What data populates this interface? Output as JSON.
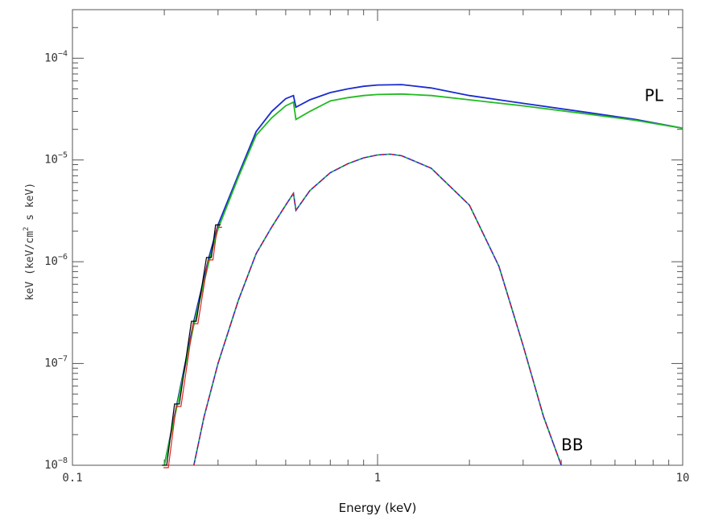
{
  "chart_data": {
    "type": "line",
    "xlabel": "Energy (keV)",
    "ylabel": {
      "prefix": "keV (keV/cm",
      "sup": "2",
      "suffix": " s keV)"
    },
    "xscale": "log",
    "yscale": "log",
    "xlim": [
      0.1,
      10
    ],
    "ylim": [
      1e-08,
      0.0003
    ],
    "x_ticks": [
      {
        "value": 0.1,
        "label": "0.1"
      },
      {
        "value": 1,
        "label": "1"
      },
      {
        "value": 10,
        "label": "10"
      }
    ],
    "y_ticks": [
      {
        "value": 1e-08,
        "base": "10",
        "exp": "−8"
      },
      {
        "value": 1e-07,
        "base": "10",
        "exp": "−7"
      },
      {
        "value": 1e-06,
        "base": "10",
        "exp": "−6"
      },
      {
        "value": 1e-05,
        "base": "10",
        "exp": "−5"
      },
      {
        "value": 0.0001,
        "base": "10",
        "exp": "−4"
      }
    ],
    "grid": false,
    "colors": {
      "data_black": "#000000",
      "data_red": "#dd2222",
      "data_green": "#22bb22",
      "data_blue": "#1a2bd0"
    },
    "annotations": [
      {
        "text": "PL",
        "x": 7.5,
        "y": 3.8e-05
      },
      {
        "text": "BB",
        "x": 4.0,
        "y": 1.4e-08
      }
    ],
    "series": [
      {
        "color": "blue",
        "style": "solid",
        "x": [
          0.2,
          0.22,
          0.25,
          0.28,
          0.3,
          0.35,
          0.4,
          0.45,
          0.5,
          0.53,
          0.54,
          0.6,
          0.7,
          0.8,
          0.9,
          1.0,
          1.2,
          1.5,
          2.0,
          3.0,
          5.0,
          7.0,
          10.0
        ],
        "y": [
          1e-08,
          4e-08,
          2.6e-07,
          1.1e-06,
          2.3e-06,
          7.2e-06,
          1.9e-05,
          3e-05,
          4e-05,
          4.3e-05,
          3.3e-05,
          3.9e-05,
          4.6e-05,
          5e-05,
          5.3e-05,
          5.45e-05,
          5.5e-05,
          5.1e-05,
          4.3e-05,
          3.6e-05,
          2.9e-05,
          2.5e-05,
          2.05e-05
        ]
      },
      {
        "color": "green",
        "style": "solid",
        "x": [
          0.2,
          0.22,
          0.25,
          0.28,
          0.3,
          0.35,
          0.4,
          0.45,
          0.5,
          0.53,
          0.54,
          0.6,
          0.7,
          0.8,
          0.9,
          1.0,
          1.2,
          1.5,
          2.0,
          3.0,
          5.0,
          7.0,
          10.0
        ],
        "y": [
          1e-08,
          3.8e-08,
          2.4e-07,
          1e-06,
          2.1e-06,
          6.8e-06,
          1.75e-05,
          2.6e-05,
          3.4e-05,
          3.7e-05,
          2.5e-05,
          3e-05,
          3.8e-05,
          4.1e-05,
          4.3e-05,
          4.4e-05,
          4.45e-05,
          4.3e-05,
          3.9e-05,
          3.4e-05,
          2.8e-05,
          2.45e-05,
          2.05e-05
        ]
      },
      {
        "color": "blue",
        "style": "dashed",
        "x": [
          0.25,
          0.27,
          0.3,
          0.35,
          0.4,
          0.45,
          0.5,
          0.53,
          0.54,
          0.6,
          0.7,
          0.8,
          0.9,
          1.0,
          1.1,
          1.2,
          1.5,
          2.0,
          2.5,
          3.0,
          3.5,
          4.0
        ],
        "y": [
          1e-08,
          3e-08,
          1e-07,
          4.2e-07,
          1.2e-06,
          2.2e-06,
          3.6e-06,
          4.7e-06,
          3.2e-06,
          5e-06,
          7.5e-06,
          9.2e-06,
          1.05e-05,
          1.12e-05,
          1.14e-05,
          1.1e-05,
          8.3e-06,
          3.6e-06,
          9e-07,
          1.5e-07,
          3e-08,
          1e-08
        ]
      }
    ]
  }
}
